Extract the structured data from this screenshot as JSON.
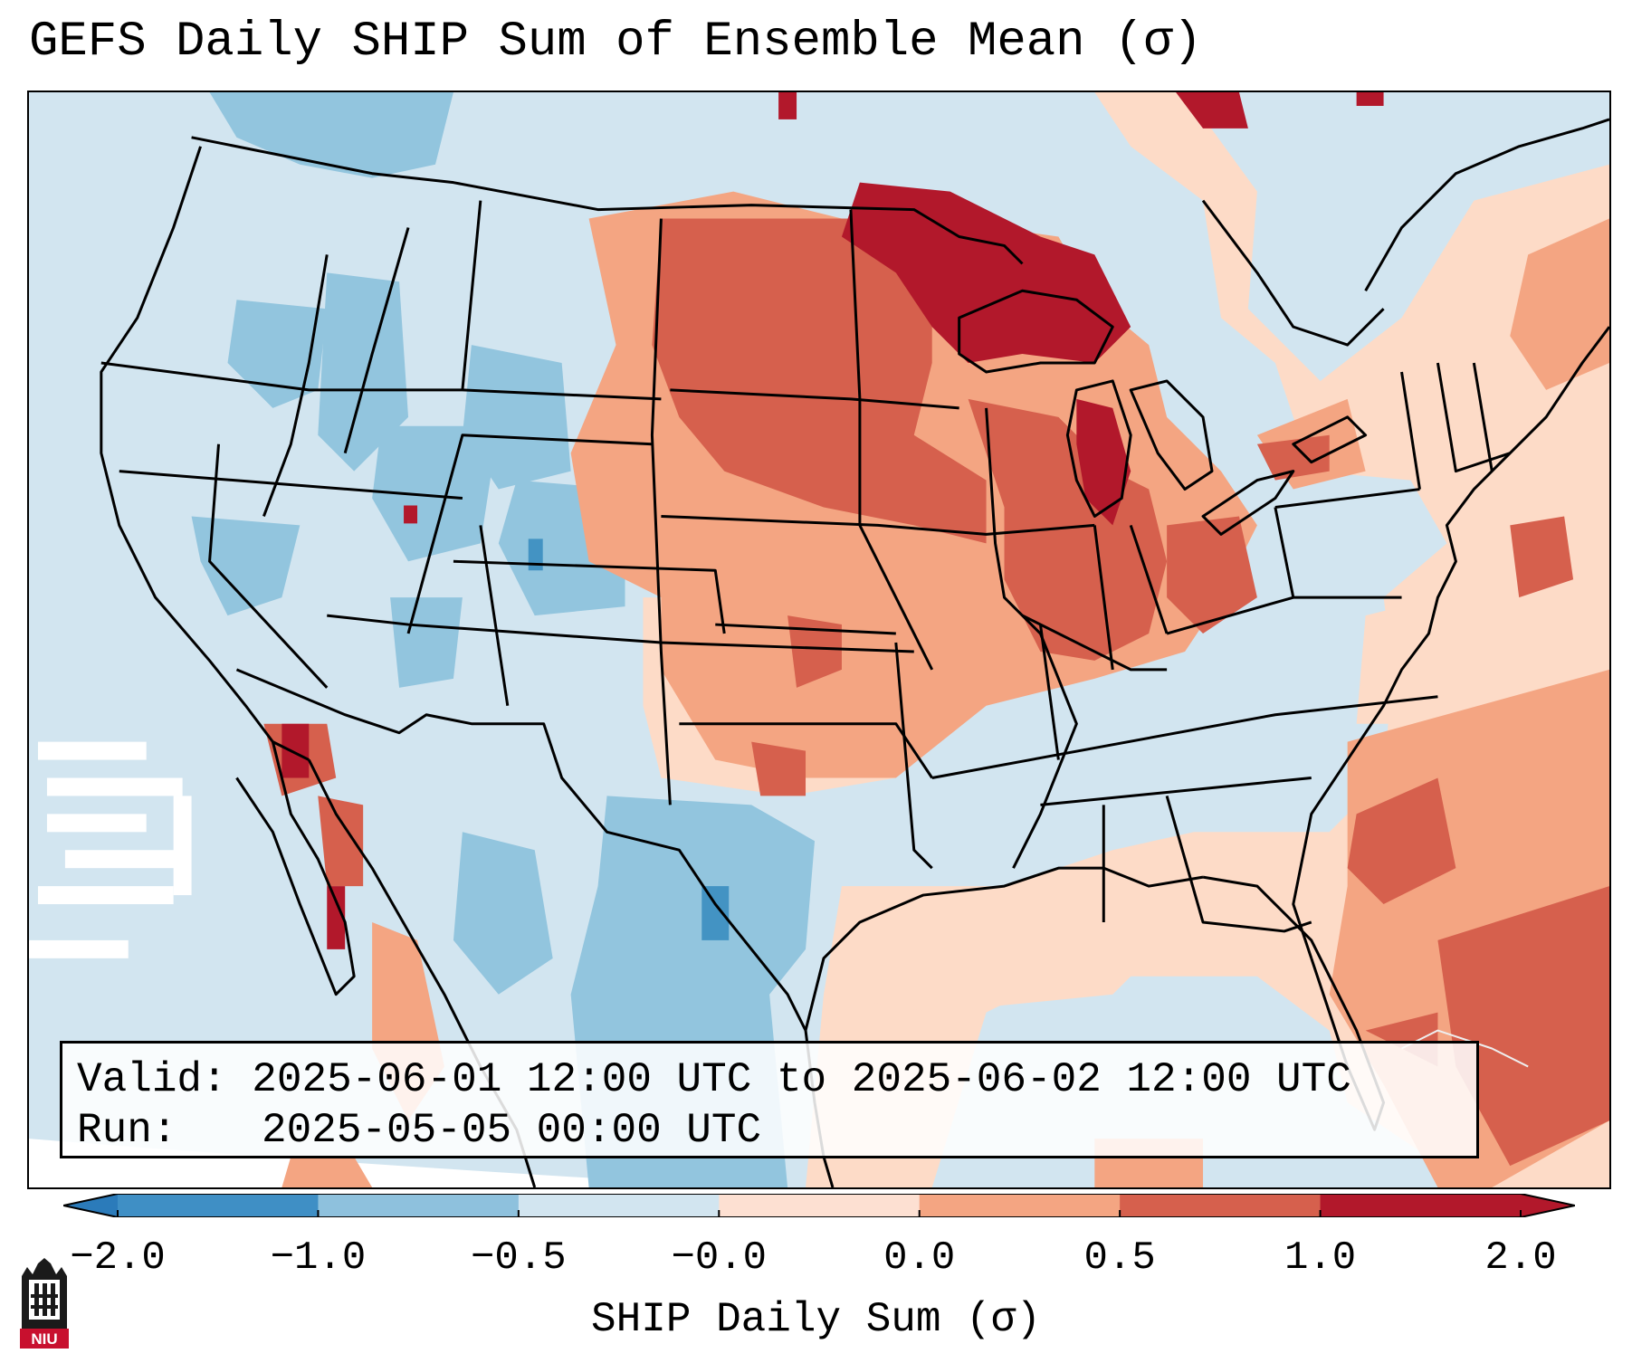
{
  "title": "GEFS Daily SHIP Sum of Ensemble Mean (σ)",
  "info": {
    "valid_label": "Valid:",
    "valid_value": "2025-06-01 12:00 UTC to 2025-06-02 12:00 UTC",
    "run_label": "Run:",
    "run_value": "2025-05-05 00:00 UTC"
  },
  "colorbar": {
    "label": "SHIP Daily Sum (σ)",
    "ticks": [
      "−2.0",
      "−1.0",
      "−0.5",
      "−0.0",
      "0.0",
      "0.5",
      "1.0",
      "2.0"
    ],
    "colors": [
      "#2b7bba",
      "#3f8fc5",
      "#8ec1dd",
      "#d2e5f0",
      "#fde0d2",
      "#f4a582",
      "#d6604d",
      "#b2182b"
    ],
    "extend": "both"
  },
  "map": {
    "projection": "Lambert Conformal (CONUS)",
    "background_color": "#d2e5f0",
    "border_color": "#000000"
  },
  "logo": {
    "text": "NIU",
    "color": "#c8102e"
  }
}
